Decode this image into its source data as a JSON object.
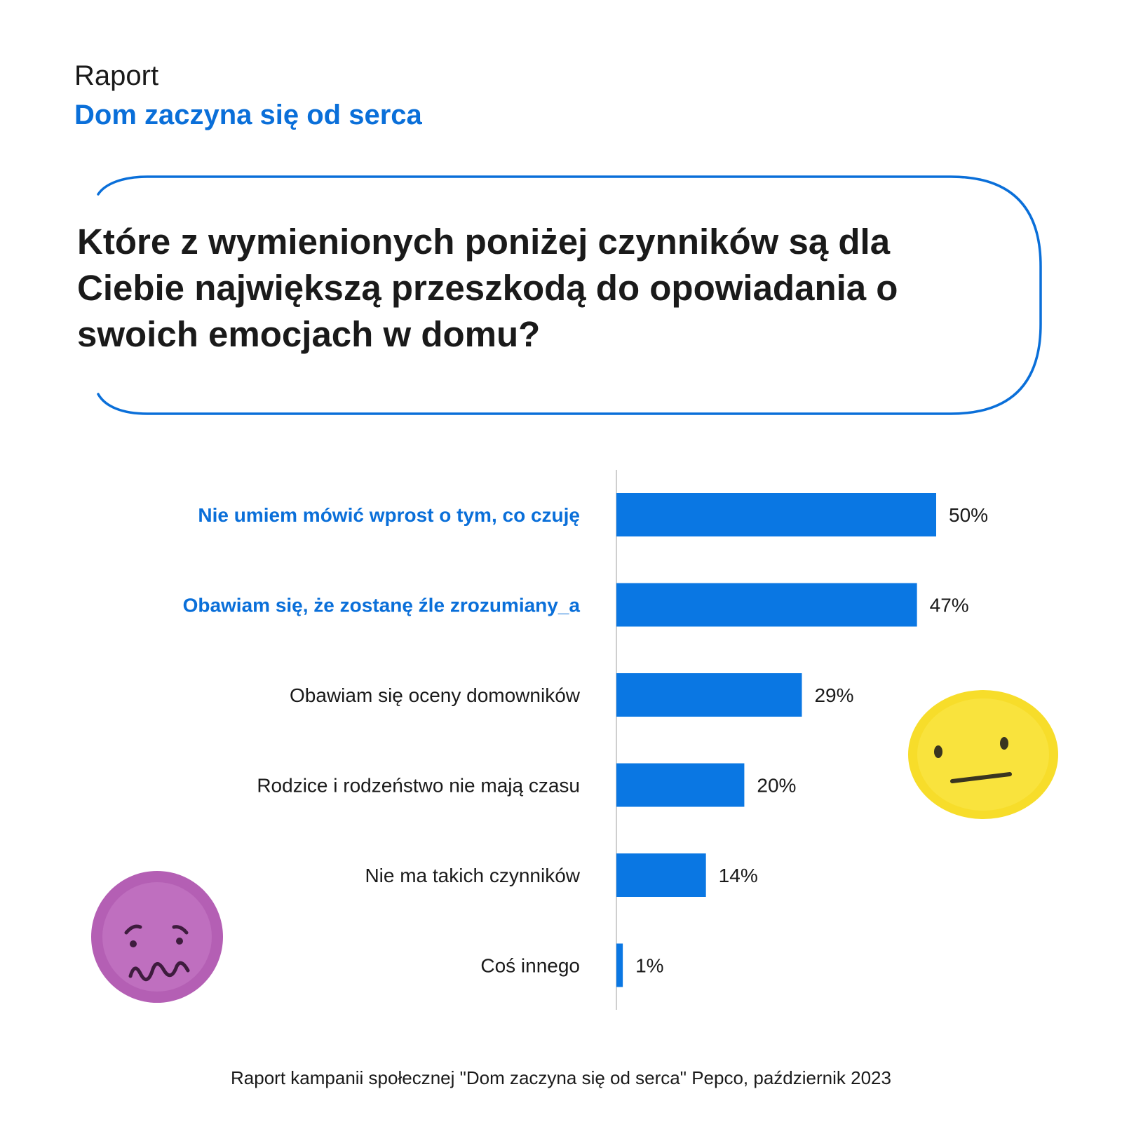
{
  "header": {
    "label": "Raport",
    "title": "Dom zaczyna się od serca"
  },
  "question": "Które z wymienionych poniżej czynników są dla Ciebie największą przeszkodą do opowiadania o swoich emocjach w domu?",
  "colors": {
    "accent": "#0a6fd9",
    "bar": "#0a77e3",
    "text": "#1a1a1a",
    "axis": "#cfcfcf",
    "emoji_yellow": "#f7dd2a",
    "emoji_purple": "#b45fb4"
  },
  "chart_data": {
    "type": "bar",
    "orientation": "horizontal",
    "categories": [
      "Nie umiem mówić wprost o tym, co czuję",
      "Obawiam się, że zostanę źle zrozumiany_a",
      "Obawiam się oceny domowników",
      "Rodzice i rodzeństwo nie mają czasu",
      "Nie ma takich czynników",
      "Coś innego"
    ],
    "values": [
      50,
      47,
      29,
      20,
      14,
      1
    ],
    "value_labels": [
      "50%",
      "47%",
      "29%",
      "20%",
      "14%",
      "1%"
    ],
    "highlighted": [
      true,
      true,
      false,
      false,
      false,
      false
    ],
    "xlim": [
      0,
      100
    ],
    "grid": false
  },
  "decorations": {
    "emoji_neutral": "neutral-face-icon",
    "emoji_worried": "worried-face-icon"
  },
  "footer": {
    "source": "Raport kampanii społecznej \"Dom zaczyna się od serca\" Pepco, październik 2023"
  }
}
